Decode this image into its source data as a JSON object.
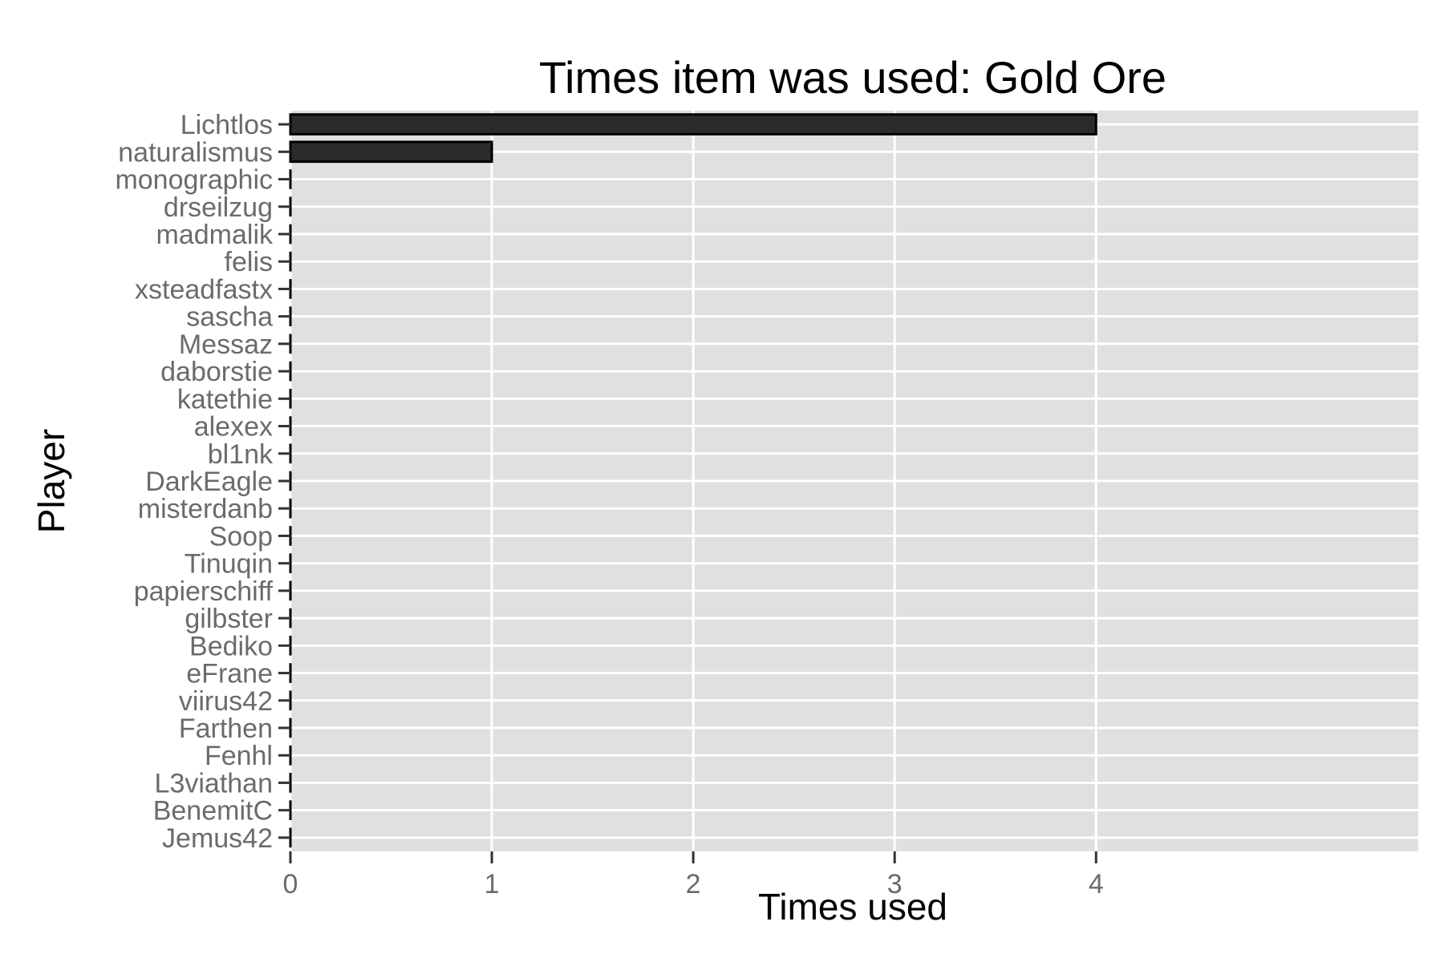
{
  "chart_data": {
    "type": "bar",
    "orientation": "horizontal",
    "title": "Times item was used: Gold Ore",
    "xlabel": "Times used",
    "ylabel": "Player",
    "xlim": [
      0,
      5.6
    ],
    "x_ticks": [
      0,
      1,
      2,
      3,
      4
    ],
    "grid": true,
    "legend": "none",
    "colors": {
      "panel": "#e0e0e0",
      "grid": "#ffffff",
      "bar_fill": "#2b2b2b",
      "bar_stroke": "#000000",
      "tick_label": "#6b6b6b",
      "text": "#000000"
    },
    "categories": [
      "Lichtlos",
      "naturalismus",
      "monographic",
      "drseilzug",
      "madmalik",
      "felis",
      "xsteadfastx",
      "sascha",
      "Messaz",
      "daborstie",
      "katethie",
      "alexex",
      "bl1nk",
      "DarkEagle",
      "misterdanb",
      "Soop",
      "Tinuqin",
      "papierschiff",
      "gilbster",
      "Bediko",
      "eFrane",
      "viirus42",
      "Farthen",
      "Fenhl",
      "L3viathan",
      "BenemitC",
      "Jemus42"
    ],
    "values": [
      4,
      1,
      0,
      0,
      0,
      0,
      0,
      0,
      0,
      0,
      0,
      0,
      0,
      0,
      0,
      0,
      0,
      0,
      0,
      0,
      0,
      0,
      0,
      0,
      0,
      0,
      0
    ]
  }
}
